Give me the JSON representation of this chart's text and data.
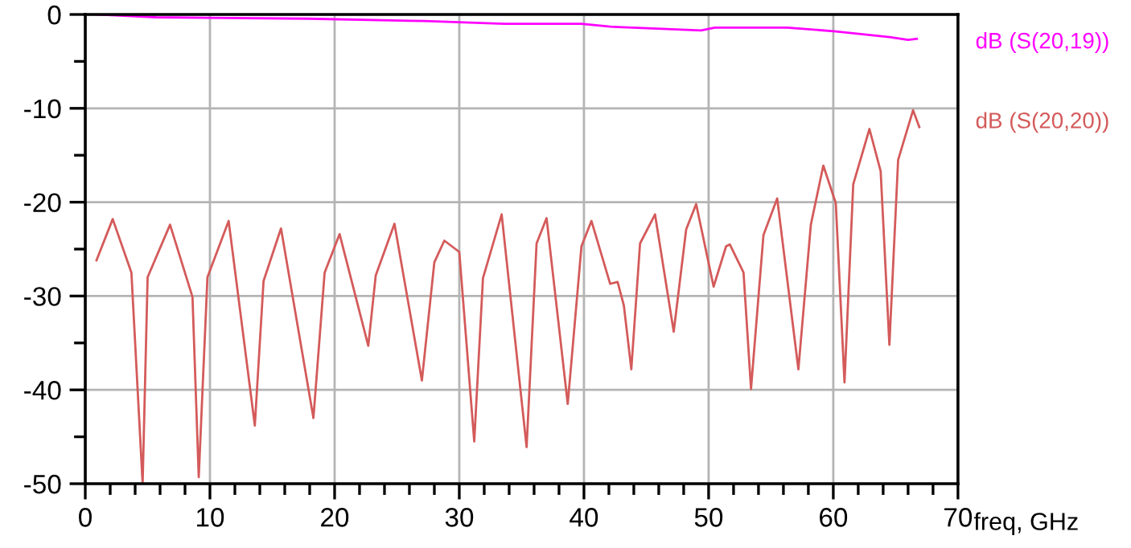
{
  "chart_data": {
    "type": "line",
    "xlabel": "freq, GHz",
    "xlim": [
      0,
      70
    ],
    "ylim": [
      -50,
      0
    ],
    "xticks": [
      0,
      {
        "value": 2,
        "label": null
      },
      {
        "value": 4,
        "label": null
      },
      {
        "value": 6,
        "label": null
      },
      {
        "value": 8,
        "label": null
      },
      10,
      {
        "value": 12,
        "label": null
      },
      {
        "value": 14,
        "label": null
      },
      {
        "value": 16,
        "label": null
      },
      {
        "value": 18,
        "label": null
      },
      20,
      {
        "value": 22,
        "label": null
      },
      {
        "value": 24,
        "label": null
      },
      {
        "value": 26,
        "label": null
      },
      {
        "value": 28,
        "label": null
      },
      30,
      {
        "value": 32,
        "label": null
      },
      {
        "value": 34,
        "label": null
      },
      {
        "value": 36,
        "label": null
      },
      {
        "value": 38,
        "label": null
      },
      40,
      {
        "value": 42,
        "label": null
      },
      {
        "value": 44,
        "label": null
      },
      {
        "value": 46,
        "label": null
      },
      {
        "value": 48,
        "label": null
      },
      50,
      {
        "value": 52,
        "label": null
      },
      {
        "value": 54,
        "label": null
      },
      {
        "value": 56,
        "label": null
      },
      {
        "value": 58,
        "label": null
      },
      60,
      {
        "value": 62,
        "label": null
      },
      {
        "value": 64,
        "label": null
      },
      {
        "value": 66,
        "label": null
      },
      {
        "value": 68,
        "label": null
      },
      70
    ],
    "yticks": [
      -50,
      {
        "value": -45,
        "label": null
      },
      -40,
      {
        "value": -35,
        "label": null
      },
      -30,
      {
        "value": -25,
        "label": null
      },
      -20,
      {
        "value": -15,
        "label": null
      },
      -10,
      {
        "value": -5,
        "label": null
      },
      0
    ],
    "grid": true,
    "legend": "right",
    "marker": "none",
    "line_style": "solid",
    "series": [
      {
        "name": "dB (S(20,19))",
        "color": "#ff00ff",
        "x": [
          0.9,
          5.7,
          17.9,
          27.2,
          33.6,
          39.8,
          42.1,
          49.4,
          50.5,
          56.3,
          60.2,
          64.5,
          66.0,
          66.7
        ],
        "values": [
          0,
          -0.3,
          -0.45,
          -0.7,
          -1.0,
          -1.0,
          -1.3,
          -1.7,
          -1.4,
          -1.4,
          -1.8,
          -2.4,
          -2.7,
          -2.6
        ]
      },
      {
        "name": "dB (S(20,20))",
        "color": "#d45a5a",
        "x": [
          0.9,
          2.2,
          3.7,
          4.6,
          5.0,
          6.8,
          8.6,
          9.1,
          9.8,
          11.5,
          13.6,
          14.3,
          15.7,
          18.3,
          19.2,
          20.4,
          22.7,
          23.3,
          24.8,
          27.0,
          28.0,
          28.8,
          30.0,
          31.2,
          31.9,
          33.4,
          35.4,
          36.2,
          37.0,
          38.7,
          39.8,
          40.6,
          42.1,
          42.7,
          43.2,
          43.8,
          44.5,
          45.7,
          47.2,
          48.2,
          49.0,
          50.4,
          51.4,
          51.7,
          52.8,
          53.4,
          54.4,
          55.5,
          57.2,
          58.2,
          59.2,
          60.2,
          60.9,
          61.6,
          62.9,
          63.8,
          64.5,
          65.2,
          66.4,
          66.9
        ],
        "values": [
          -26.2,
          -21.8,
          -27.5,
          -50,
          -28,
          -22.4,
          -30.1,
          -49.3,
          -28,
          -22,
          -43.8,
          -28.4,
          -22.8,
          -43,
          -27.5,
          -23.4,
          -35.3,
          -27.8,
          -22.3,
          -39,
          -26.4,
          -24.1,
          -25.3,
          -45.5,
          -28.1,
          -21.3,
          -46.1,
          -24.4,
          -21.7,
          -41.5,
          -24.7,
          -22,
          -28.7,
          -28.5,
          -31,
          -37.8,
          -24.4,
          -21.3,
          -33.8,
          -22.9,
          -20.2,
          -29,
          -24.7,
          -24.5,
          -27.5,
          -39.9,
          -23.5,
          -19.6,
          -37.8,
          -22.4,
          -16.1,
          -20.1,
          -39.2,
          -18.1,
          -12.2,
          -16.7,
          -35.2,
          -15.5,
          -10.2,
          -12.0
        ]
      }
    ]
  }
}
